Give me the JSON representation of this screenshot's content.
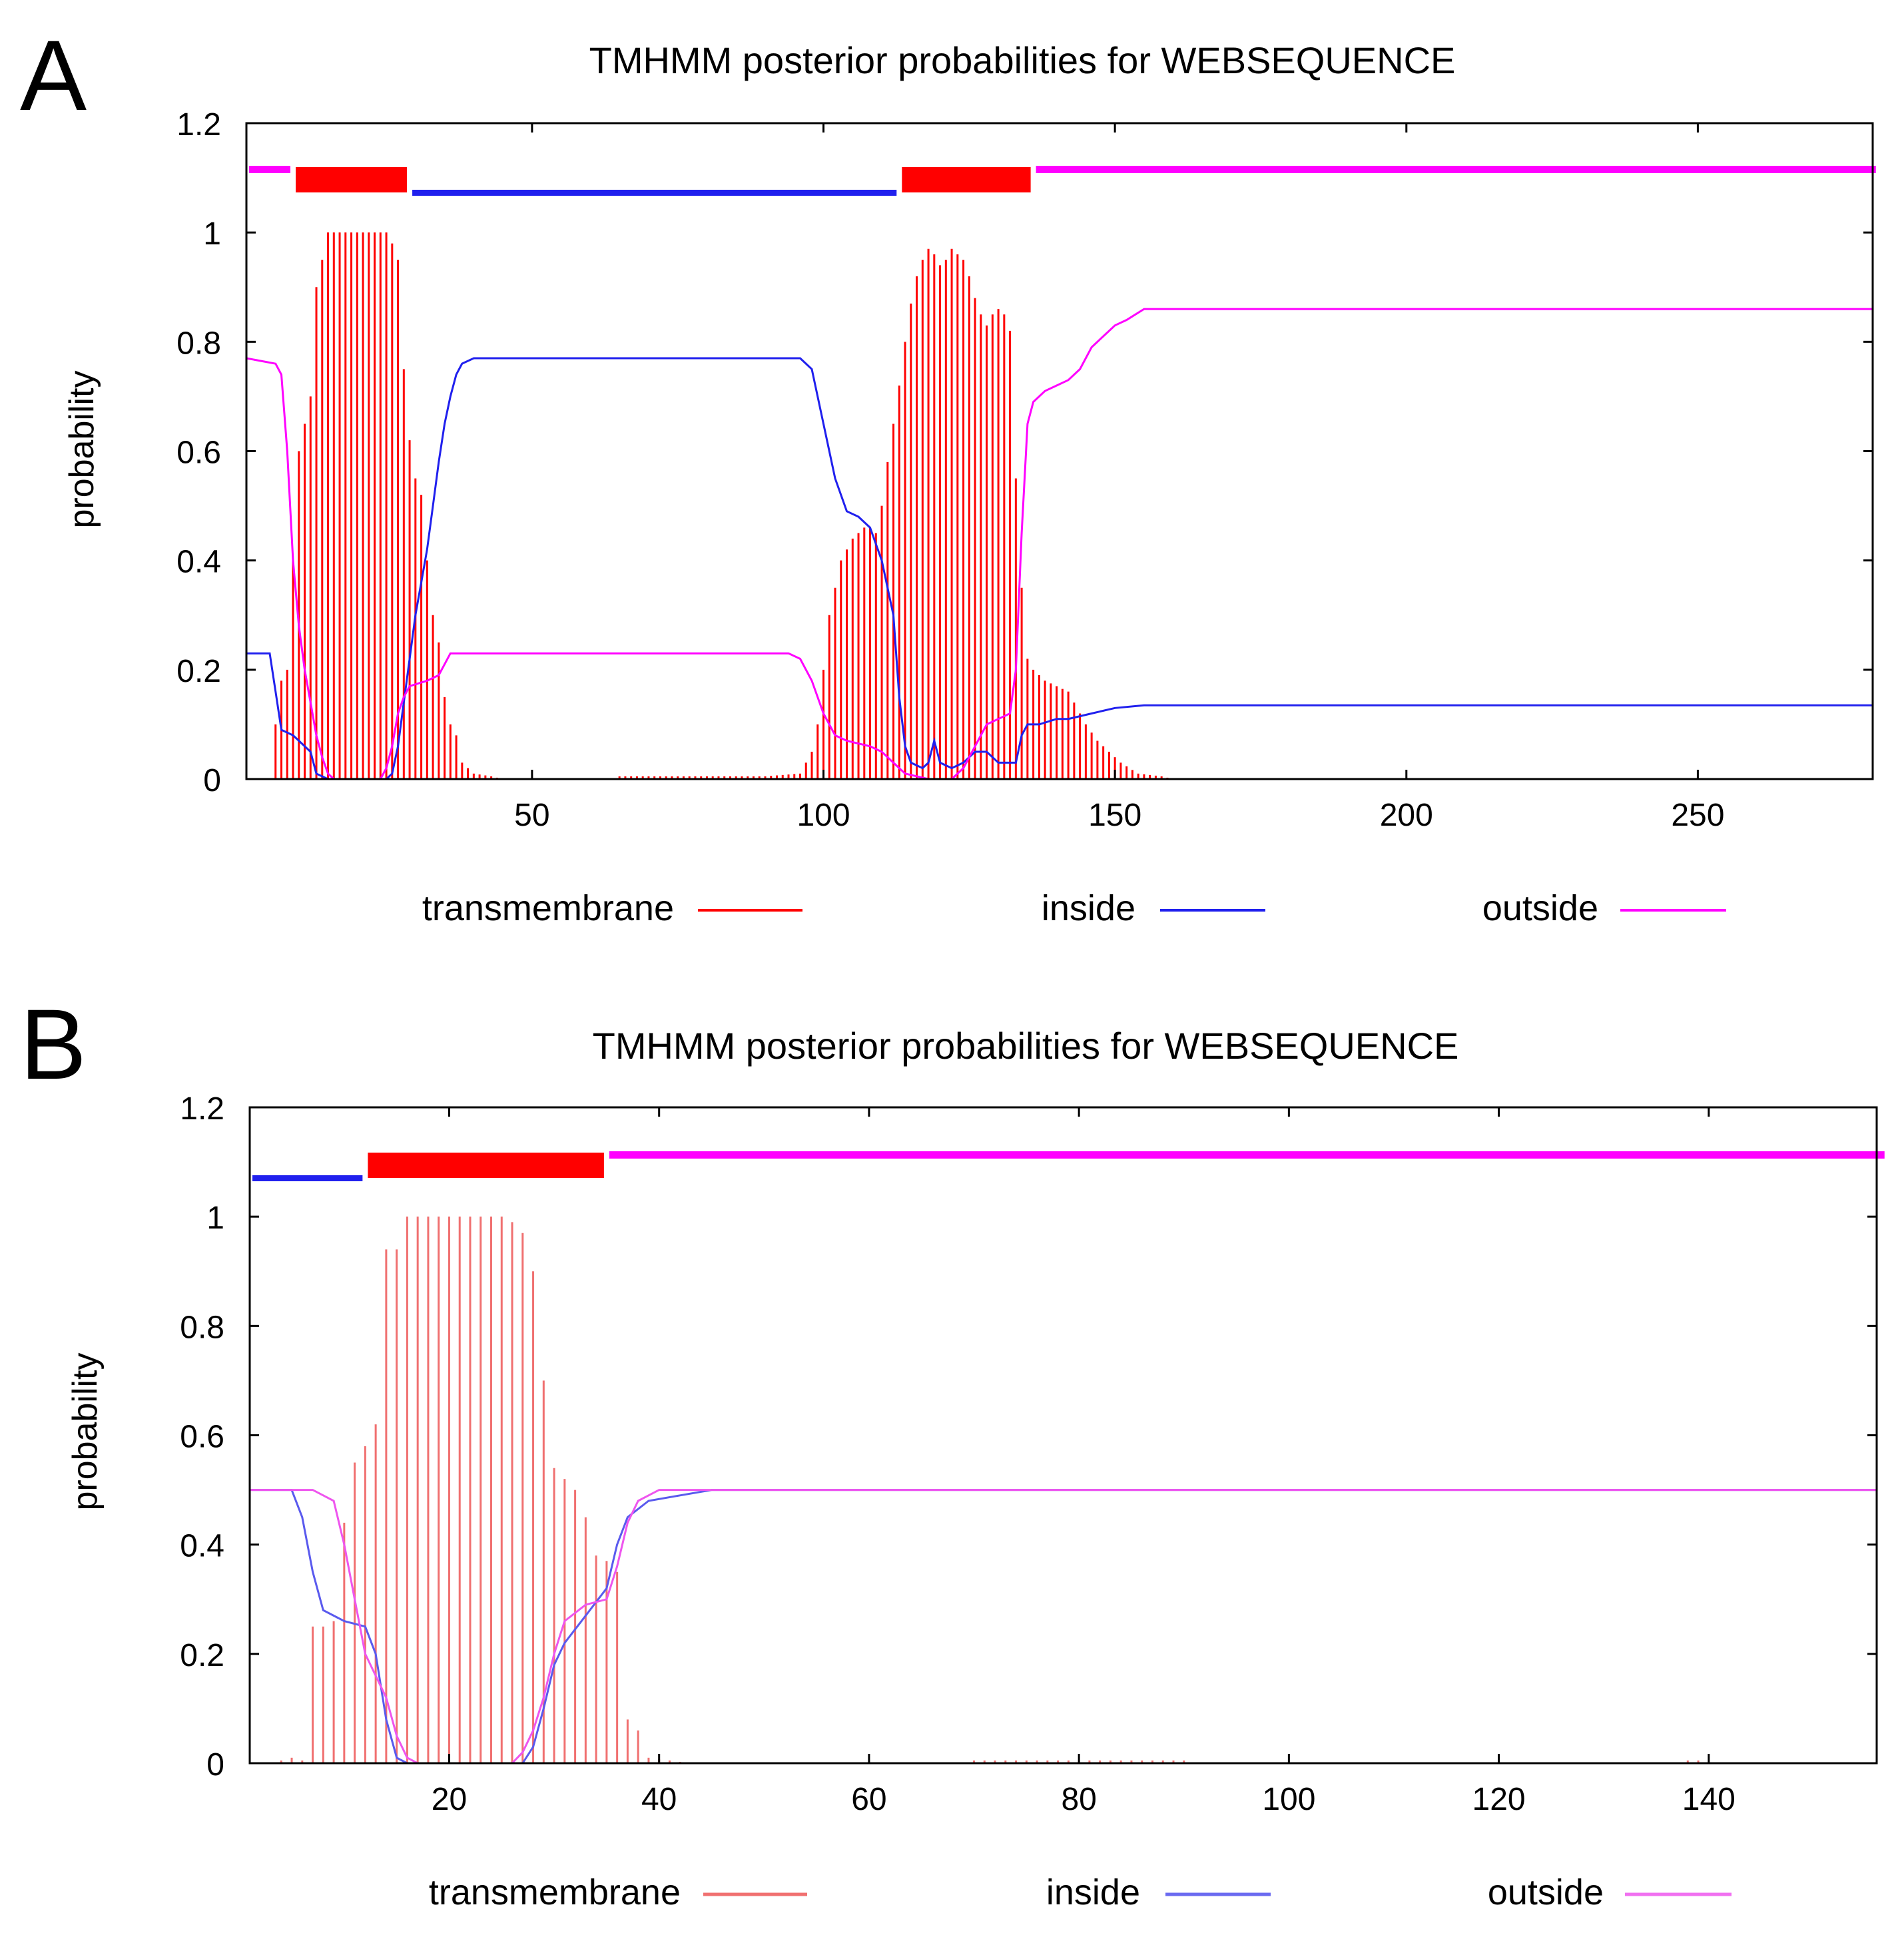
{
  "colors": {
    "transmembrane": "#ff0000",
    "transmembrane_bar": "#f07070",
    "inside": "#2020ee",
    "outside": "#ff00ff",
    "axis": "#000000",
    "background": "#ffffff"
  },
  "chart_data": [
    {
      "panel": "A",
      "type": "line",
      "title": "TMHMM posterior probabilities for WEBSEQUENCE",
      "xlabel": "",
      "ylabel": "probability",
      "xlim": [
        1,
        280
      ],
      "ylim": [
        0,
        1.2
      ],
      "xticks": [
        50,
        100,
        150,
        200,
        250
      ],
      "yticks": [
        0,
        0.2,
        0.4,
        0.6,
        0.8,
        1,
        1.2
      ],
      "ytick_labels": [
        "0",
        "0.2",
        "0.4",
        "0.6",
        "0.8",
        "1",
        "1.2"
      ],
      "legend": [
        "transmembrane",
        "inside",
        "outside"
      ],
      "legend_position": "bottom",
      "topology": [
        {
          "type": "outside",
          "start": 1,
          "end": 8
        },
        {
          "type": "transmembrane",
          "start": 9,
          "end": 28
        },
        {
          "type": "inside",
          "start": 29,
          "end": 112
        },
        {
          "type": "transmembrane",
          "start": 113,
          "end": 135
        },
        {
          "type": "outside",
          "start": 136,
          "end": 280
        }
      ],
      "transmembrane_profile": [
        [
          5,
          0
        ],
        [
          6,
          0.1
        ],
        [
          7,
          0.18
        ],
        [
          8,
          0.2
        ],
        [
          9,
          0.4
        ],
        [
          10,
          0.6
        ],
        [
          11,
          0.65
        ],
        [
          12,
          0.7
        ],
        [
          13,
          0.9
        ],
        [
          14,
          0.95
        ],
        [
          15,
          1.0
        ],
        [
          18,
          1.0
        ],
        [
          22,
          1.0
        ],
        [
          25,
          1.0
        ],
        [
          26,
          0.98
        ],
        [
          27,
          0.95
        ],
        [
          28,
          0.75
        ],
        [
          29,
          0.62
        ],
        [
          30,
          0.55
        ],
        [
          31,
          0.52
        ],
        [
          32,
          0.4
        ],
        [
          33,
          0.3
        ],
        [
          34,
          0.25
        ],
        [
          35,
          0.15
        ],
        [
          36,
          0.1
        ],
        [
          37,
          0.08
        ],
        [
          38,
          0.03
        ],
        [
          40,
          0.01
        ],
        [
          43,
          0.005
        ],
        [
          45,
          0
        ],
        [
          64,
          0
        ],
        [
          65,
          0.005
        ],
        [
          75,
          0.005
        ],
        [
          90,
          0.005
        ],
        [
          96,
          0.01
        ],
        [
          97,
          0.03
        ],
        [
          98,
          0.05
        ],
        [
          99,
          0.1
        ],
        [
          100,
          0.2
        ],
        [
          101,
          0.3
        ],
        [
          102,
          0.35
        ],
        [
          103,
          0.4
        ],
        [
          104,
          0.42
        ],
        [
          105,
          0.44
        ],
        [
          106,
          0.45
        ],
        [
          107,
          0.46
        ],
        [
          108,
          0.46
        ],
        [
          109,
          0.45
        ],
        [
          110,
          0.5
        ],
        [
          111,
          0.58
        ],
        [
          112,
          0.65
        ],
        [
          113,
          0.72
        ],
        [
          114,
          0.8
        ],
        [
          115,
          0.87
        ],
        [
          116,
          0.92
        ],
        [
          117,
          0.95
        ],
        [
          118,
          0.97
        ],
        [
          119,
          0.96
        ],
        [
          120,
          0.94
        ],
        [
          121,
          0.95
        ],
        [
          122,
          0.97
        ],
        [
          123,
          0.96
        ],
        [
          124,
          0.95
        ],
        [
          125,
          0.92
        ],
        [
          126,
          0.88
        ],
        [
          127,
          0.85
        ],
        [
          128,
          0.83
        ],
        [
          129,
          0.85
        ],
        [
          130,
          0.86
        ],
        [
          131,
          0.85
        ],
        [
          132,
          0.82
        ],
        [
          133,
          0.55
        ],
        [
          134,
          0.35
        ],
        [
          135,
          0.22
        ],
        [
          136,
          0.2
        ],
        [
          137,
          0.19
        ],
        [
          138,
          0.18
        ],
        [
          140,
          0.17
        ],
        [
          142,
          0.16
        ],
        [
          143,
          0.14
        ],
        [
          145,
          0.1
        ],
        [
          147,
          0.07
        ],
        [
          149,
          0.05
        ],
        [
          151,
          0.03
        ],
        [
          154,
          0.01
        ],
        [
          158,
          0.005
        ],
        [
          160,
          0
        ]
      ],
      "inside_series": [
        [
          1,
          0.23
        ],
        [
          5,
          0.23
        ],
        [
          6,
          0.16
        ],
        [
          7,
          0.09
        ],
        [
          9,
          0.08
        ],
        [
          10,
          0.07
        ],
        [
          12,
          0.05
        ],
        [
          13,
          0.01
        ],
        [
          15,
          0
        ],
        [
          25,
          0
        ],
        [
          26,
          0.01
        ],
        [
          27,
          0.06
        ],
        [
          28,
          0.14
        ],
        [
          29,
          0.22
        ],
        [
          30,
          0.3
        ],
        [
          31,
          0.36
        ],
        [
          32,
          0.42
        ],
        [
          33,
          0.5
        ],
        [
          34,
          0.58
        ],
        [
          35,
          0.65
        ],
        [
          36,
          0.7
        ],
        [
          37,
          0.74
        ],
        [
          38,
          0.76
        ],
        [
          40,
          0.77
        ],
        [
          96,
          0.77
        ],
        [
          98,
          0.75
        ],
        [
          100,
          0.65
        ],
        [
          102,
          0.55
        ],
        [
          104,
          0.49
        ],
        [
          106,
          0.48
        ],
        [
          108,
          0.46
        ],
        [
          110,
          0.4
        ],
        [
          112,
          0.3
        ],
        [
          113,
          0.15
        ],
        [
          114,
          0.06
        ],
        [
          115,
          0.03
        ],
        [
          117,
          0.02
        ],
        [
          118,
          0.03
        ],
        [
          119,
          0.07
        ],
        [
          120,
          0.03
        ],
        [
          122,
          0.02
        ],
        [
          124,
          0.03
        ],
        [
          126,
          0.05
        ],
        [
          128,
          0.05
        ],
        [
          130,
          0.03
        ],
        [
          133,
          0.03
        ],
        [
          134,
          0.08
        ],
        [
          135,
          0.1
        ],
        [
          137,
          0.1
        ],
        [
          140,
          0.11
        ],
        [
          142,
          0.11
        ],
        [
          146,
          0.12
        ],
        [
          150,
          0.13
        ],
        [
          155,
          0.135
        ],
        [
          280,
          0.135
        ]
      ],
      "outside_series": [
        [
          1,
          0.77
        ],
        [
          6,
          0.76
        ],
        [
          7,
          0.74
        ],
        [
          8,
          0.6
        ],
        [
          9,
          0.4
        ],
        [
          10,
          0.28
        ],
        [
          11,
          0.2
        ],
        [
          12,
          0.14
        ],
        [
          13,
          0.08
        ],
        [
          14,
          0.04
        ],
        [
          15,
          0.01
        ],
        [
          16,
          0
        ],
        [
          24,
          0
        ],
        [
          25,
          0.02
        ],
        [
          26,
          0.06
        ],
        [
          27,
          0.12
        ],
        [
          28,
          0.15
        ],
        [
          29,
          0.17
        ],
        [
          32,
          0.18
        ],
        [
          34,
          0.19
        ],
        [
          35,
          0.21
        ],
        [
          36,
          0.23
        ],
        [
          94,
          0.23
        ],
        [
          96,
          0.22
        ],
        [
          98,
          0.18
        ],
        [
          100,
          0.12
        ],
        [
          102,
          0.08
        ],
        [
          104,
          0.07
        ],
        [
          108,
          0.06
        ],
        [
          110,
          0.05
        ],
        [
          112,
          0.03
        ],
        [
          114,
          0.01
        ],
        [
          118,
          0
        ],
        [
          122,
          0
        ],
        [
          124,
          0.02
        ],
        [
          126,
          0.06
        ],
        [
          128,
          0.1
        ],
        [
          130,
          0.11
        ],
        [
          132,
          0.12
        ],
        [
          133,
          0.2
        ],
        [
          134,
          0.45
        ],
        [
          135,
          0.65
        ],
        [
          136,
          0.69
        ],
        [
          138,
          0.71
        ],
        [
          140,
          0.72
        ],
        [
          142,
          0.73
        ],
        [
          144,
          0.75
        ],
        [
          146,
          0.79
        ],
        [
          148,
          0.81
        ],
        [
          150,
          0.83
        ],
        [
          152,
          0.84
        ],
        [
          155,
          0.86
        ],
        [
          280,
          0.86
        ]
      ]
    },
    {
      "panel": "B",
      "type": "line",
      "title": "TMHMM posterior probabilities for WEBSEQUENCE",
      "xlabel": "",
      "ylabel": "probability",
      "xlim": [
        1,
        156
      ],
      "ylim": [
        0,
        1.2
      ],
      "xticks": [
        20,
        40,
        60,
        80,
        100,
        120,
        140
      ],
      "yticks": [
        0,
        0.2,
        0.4,
        0.6,
        0.8,
        1,
        1.2
      ],
      "ytick_labels": [
        "0",
        "0.2",
        "0.4",
        "0.6",
        "0.8",
        "1",
        "1.2"
      ],
      "legend": [
        "transmembrane",
        "inside",
        "outside"
      ],
      "legend_position": "bottom",
      "topology": [
        {
          "type": "inside",
          "start": 1,
          "end": 11
        },
        {
          "type": "transmembrane",
          "start": 12,
          "end": 34
        },
        {
          "type": "outside",
          "start": 35,
          "end": 156
        }
      ],
      "transmembrane_profile": [
        [
          3,
          0
        ],
        [
          4,
          0.005
        ],
        [
          5,
          0.01
        ],
        [
          6,
          0.005
        ],
        [
          7,
          0.25
        ],
        [
          8,
          0.25
        ],
        [
          9,
          0.26
        ],
        [
          10,
          0.44
        ],
        [
          11,
          0.55
        ],
        [
          12,
          0.58
        ],
        [
          13,
          0.62
        ],
        [
          14,
          0.94
        ],
        [
          15,
          0.94
        ],
        [
          16,
          1.0
        ],
        [
          20,
          1.0
        ],
        [
          22,
          1.0
        ],
        [
          24,
          1.0
        ],
        [
          25,
          1.0
        ],
        [
          26,
          0.99
        ],
        [
          27,
          0.97
        ],
        [
          28,
          0.9
        ],
        [
          29,
          0.7
        ],
        [
          30,
          0.54
        ],
        [
          31,
          0.52
        ],
        [
          32,
          0.5
        ],
        [
          33,
          0.45
        ],
        [
          34,
          0.38
        ],
        [
          35,
          0.37
        ],
        [
          36,
          0.35
        ],
        [
          37,
          0.08
        ],
        [
          38,
          0.06
        ],
        [
          39,
          0.01
        ],
        [
          41,
          0.005
        ],
        [
          43,
          0
        ],
        [
          69,
          0
        ],
        [
          70,
          0.005
        ],
        [
          80,
          0.005
        ],
        [
          90,
          0.005
        ],
        [
          91,
          0
        ],
        [
          137,
          0
        ],
        [
          138,
          0.005
        ],
        [
          139,
          0.005
        ],
        [
          140,
          0
        ]
      ],
      "inside_series": [
        [
          1,
          0.5
        ],
        [
          5,
          0.5
        ],
        [
          6,
          0.45
        ],
        [
          7,
          0.35
        ],
        [
          8,
          0.28
        ],
        [
          10,
          0.26
        ],
        [
          12,
          0.25
        ],
        [
          13,
          0.2
        ],
        [
          14,
          0.08
        ],
        [
          15,
          0.01
        ],
        [
          16,
          0
        ],
        [
          27,
          0
        ],
        [
          28,
          0.03
        ],
        [
          29,
          0.1
        ],
        [
          30,
          0.18
        ],
        [
          31,
          0.22
        ],
        [
          33,
          0.27
        ],
        [
          35,
          0.32
        ],
        [
          36,
          0.4
        ],
        [
          37,
          0.45
        ],
        [
          39,
          0.48
        ],
        [
          42,
          0.49
        ],
        [
          45,
          0.5
        ],
        [
          156,
          0.5
        ]
      ],
      "outside_series": [
        [
          1,
          0.5
        ],
        [
          5,
          0.5
        ],
        [
          7,
          0.5
        ],
        [
          9,
          0.48
        ],
        [
          10,
          0.4
        ],
        [
          11,
          0.3
        ],
        [
          12,
          0.2
        ],
        [
          14,
          0.12
        ],
        [
          15,
          0.05
        ],
        [
          16,
          0.01
        ],
        [
          17,
          0
        ],
        [
          26,
          0
        ],
        [
          27,
          0.02
        ],
        [
          28,
          0.06
        ],
        [
          29,
          0.12
        ],
        [
          30,
          0.2
        ],
        [
          31,
          0.26
        ],
        [
          33,
          0.29
        ],
        [
          35,
          0.3
        ],
        [
          36,
          0.36
        ],
        [
          37,
          0.44
        ],
        [
          38,
          0.48
        ],
        [
          40,
          0.5
        ],
        [
          156,
          0.5
        ]
      ]
    }
  ]
}
